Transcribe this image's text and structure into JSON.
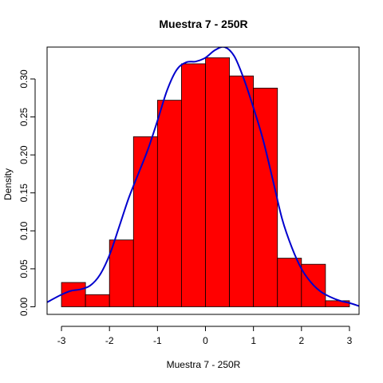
{
  "chart_data": {
    "type": "bar",
    "title": "Muestra 7 - 250R",
    "xlabel": "Muestra 7 - 250R",
    "ylabel": "Density",
    "xlim": [
      -3.3,
      3.2
    ],
    "ylim": [
      -0.01,
      0.342
    ],
    "x_ticks": [
      -3,
      -2,
      -1,
      0,
      1,
      2,
      3
    ],
    "x_tick_labels": [
      "-3",
      "-2",
      "-1",
      "0",
      "1",
      "2",
      "3"
    ],
    "y_ticks": [
      0.0,
      0.05,
      0.1,
      0.15,
      0.2,
      0.25,
      0.3
    ],
    "y_tick_labels": [
      "0.00",
      "0.05",
      "0.10",
      "0.15",
      "0.20",
      "0.25",
      "0.30"
    ],
    "bin_edges": [
      -3.0,
      -2.5,
      -2.0,
      -1.5,
      -1.0,
      -0.5,
      0.0,
      0.5,
      1.0,
      1.5,
      2.0,
      2.5,
      3.0
    ],
    "values": [
      0.032,
      0.016,
      0.088,
      0.224,
      0.272,
      0.32,
      0.328,
      0.304,
      0.288,
      0.064,
      0.056,
      0.008
    ],
    "bar_color": "#ff0000",
    "density_color": "#0000cd",
    "density_curve": {
      "x": [
        -3.3,
        -3.0,
        -2.8,
        -2.6,
        -2.4,
        -2.2,
        -2.0,
        -1.8,
        -1.6,
        -1.4,
        -1.2,
        -1.0,
        -0.8,
        -0.6,
        -0.4,
        -0.2,
        0.0,
        0.2,
        0.4,
        0.6,
        0.8,
        1.0,
        1.2,
        1.4,
        1.6,
        1.8,
        2.0,
        2.2,
        2.4,
        2.6,
        2.8,
        3.0,
        3.2
      ],
      "y": [
        0.006,
        0.016,
        0.021,
        0.023,
        0.028,
        0.042,
        0.068,
        0.105,
        0.143,
        0.175,
        0.207,
        0.245,
        0.285,
        0.312,
        0.322,
        0.323,
        0.328,
        0.338,
        0.342,
        0.33,
        0.3,
        0.262,
        0.22,
        0.168,
        0.115,
        0.078,
        0.05,
        0.032,
        0.02,
        0.013,
        0.008,
        0.005,
        0.001
      ]
    }
  }
}
